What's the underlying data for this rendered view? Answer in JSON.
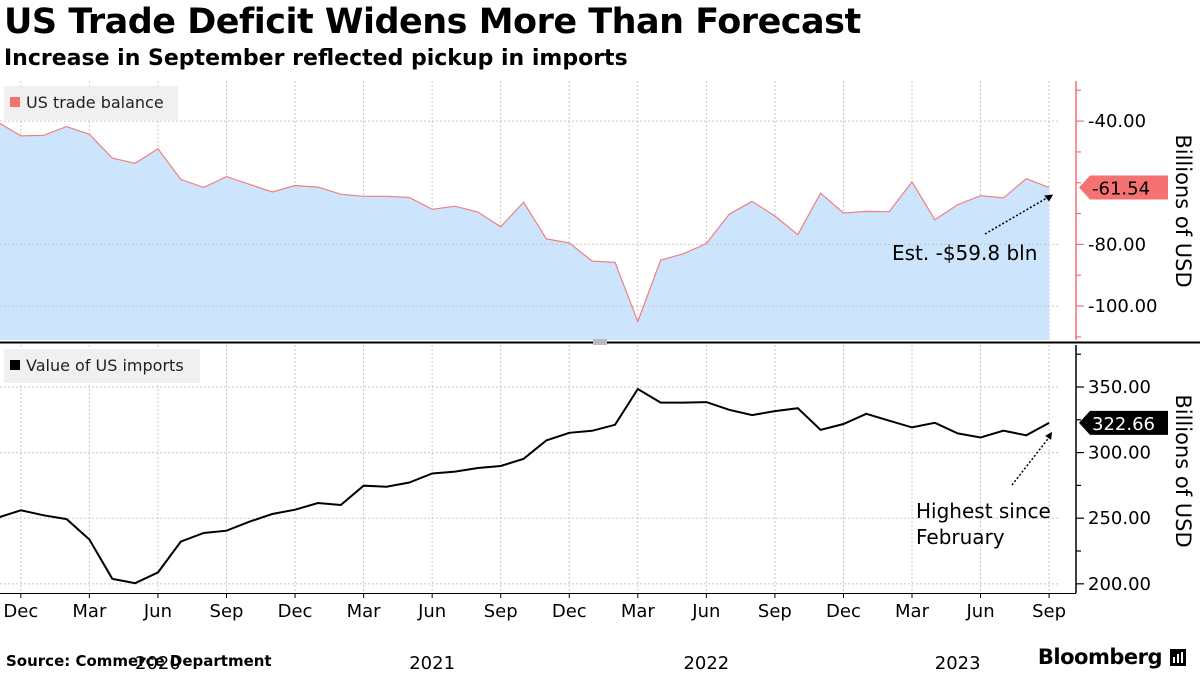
{
  "header": {
    "title": "US Trade Deficit Widens More Than Forecast",
    "subtitle": "Increase in September reflected pickup in imports"
  },
  "footer": {
    "source": "Source: Commerce Department",
    "brand": "Bloomberg"
  },
  "colors": {
    "balance_line": "#f07f80",
    "balance_fill": "#cce4fc",
    "balance_marker": "#f47272",
    "imports_line": "#000000",
    "imports_marker": "#000000",
    "grid": "#c8c8c8"
  },
  "chart_data": [
    {
      "type": "area",
      "title": "US trade balance",
      "legend": "US trade balance",
      "ylabel": "Billions of USD",
      "ylim": [
        -111,
        -27
      ],
      "yticks": [
        -40,
        -80,
        -100
      ],
      "ytick_labels": [
        "-40.00",
        "-80.00",
        "-100.00"
      ],
      "x": [
        "2019-11",
        "2019-12",
        "2020-01",
        "2020-02",
        "2020-03",
        "2020-04",
        "2020-05",
        "2020-06",
        "2020-07",
        "2020-08",
        "2020-09",
        "2020-10",
        "2020-11",
        "2020-12",
        "2021-01",
        "2021-02",
        "2021-03",
        "2021-04",
        "2021-05",
        "2021-06",
        "2021-07",
        "2021-08",
        "2021-09",
        "2021-10",
        "2021-11",
        "2021-12",
        "2022-01",
        "2022-02",
        "2022-03",
        "2022-04",
        "2022-05",
        "2022-06",
        "2022-07",
        "2022-08",
        "2022-09",
        "2022-10",
        "2022-11",
        "2022-12",
        "2023-01",
        "2023-02",
        "2023-03",
        "2023-04",
        "2023-05",
        "2023-06",
        "2023-07",
        "2023-08",
        "2023-09"
      ],
      "values": [
        -40.4,
        -44.8,
        -44.6,
        -41.8,
        -44.3,
        -52.0,
        -53.7,
        -49.0,
        -58.9,
        -61.5,
        -58.0,
        -60.5,
        -63.0,
        -60.9,
        -61.4,
        -63.7,
        -64.4,
        -64.4,
        -64.8,
        -68.6,
        -67.6,
        -69.5,
        -74.3,
        -66.3,
        -78.2,
        -79.5,
        -85.4,
        -85.8,
        -105.0,
        -85.1,
        -83.0,
        -79.7,
        -70.2,
        -66.0,
        -70.8,
        -76.8,
        -63.4,
        -69.8,
        -69.3,
        -69.4,
        -59.7,
        -72.0,
        -67.1,
        -64.2,
        -64.9,
        -58.7,
        -61.54
      ],
      "last_value_label": "-61.54",
      "annotation": "Est. -$59.8 bln"
    },
    {
      "type": "line",
      "title": "Value of US imports",
      "legend": "Value of US imports",
      "ylabel": "Billions of USD",
      "ylim": [
        193,
        382
      ],
      "yticks": [
        350,
        300,
        250,
        200
      ],
      "ytick_labels": [
        "350.00",
        "300.00",
        "250.00",
        "200.00"
      ],
      "x": [
        "2019-11",
        "2019-12",
        "2020-01",
        "2020-02",
        "2020-03",
        "2020-04",
        "2020-05",
        "2020-06",
        "2020-07",
        "2020-08",
        "2020-09",
        "2020-10",
        "2020-11",
        "2020-12",
        "2021-01",
        "2021-02",
        "2021-03",
        "2021-04",
        "2021-05",
        "2021-06",
        "2021-07",
        "2021-08",
        "2021-09",
        "2021-10",
        "2021-11",
        "2021-12",
        "2022-01",
        "2022-02",
        "2022-03",
        "2022-04",
        "2022-05",
        "2022-06",
        "2022-07",
        "2022-08",
        "2022-09",
        "2022-10",
        "2022-11",
        "2022-12",
        "2023-01",
        "2023-02",
        "2023-03",
        "2023-04",
        "2023-05",
        "2023-06",
        "2023-07",
        "2023-08",
        "2023-09"
      ],
      "values": [
        250.5,
        256.0,
        252.2,
        249.3,
        233.8,
        203.8,
        200.5,
        208.7,
        232.2,
        238.7,
        240.5,
        247.3,
        253.2,
        256.5,
        261.6,
        260.1,
        274.8,
        274.0,
        277.2,
        284.1,
        285.5,
        288.3,
        289.8,
        295.3,
        309.3,
        315.1,
        316.6,
        321.2,
        348.5,
        338.1,
        338.1,
        338.5,
        332.6,
        328.6,
        331.6,
        333.8,
        317.3,
        321.8,
        329.6,
        324.3,
        319.2,
        322.7,
        314.6,
        311.5,
        316.7,
        313.2,
        322.66
      ],
      "last_value_label": "322.66",
      "annotation_line1": "Highest since",
      "annotation_line2": "February"
    }
  ],
  "x_axis": {
    "ticks": [
      {
        "label": "Dec",
        "date": "2019-12"
      },
      {
        "label": "Mar",
        "date": "2020-03"
      },
      {
        "label": "Jun",
        "date": "2020-06"
      },
      {
        "label": "Sep",
        "date": "2020-09"
      },
      {
        "label": "Dec",
        "date": "2020-12"
      },
      {
        "label": "Mar",
        "date": "2021-03"
      },
      {
        "label": "Jun",
        "date": "2021-06"
      },
      {
        "label": "Sep",
        "date": "2021-09"
      },
      {
        "label": "Dec",
        "date": "2021-12"
      },
      {
        "label": "Mar",
        "date": "2022-03"
      },
      {
        "label": "Jun",
        "date": "2022-06"
      },
      {
        "label": "Sep",
        "date": "2022-09"
      },
      {
        "label": "Dec",
        "date": "2022-12"
      },
      {
        "label": "Mar",
        "date": "2023-03"
      },
      {
        "label": "Jun",
        "date": "2023-06"
      },
      {
        "label": "Sep",
        "date": "2023-09"
      }
    ],
    "years": [
      {
        "label": "2020",
        "date": "2020-06"
      },
      {
        "label": "2021",
        "date": "2021-06"
      },
      {
        "label": "2022",
        "date": "2022-06"
      },
      {
        "label": "2023",
        "date": "2023-05"
      }
    ]
  }
}
